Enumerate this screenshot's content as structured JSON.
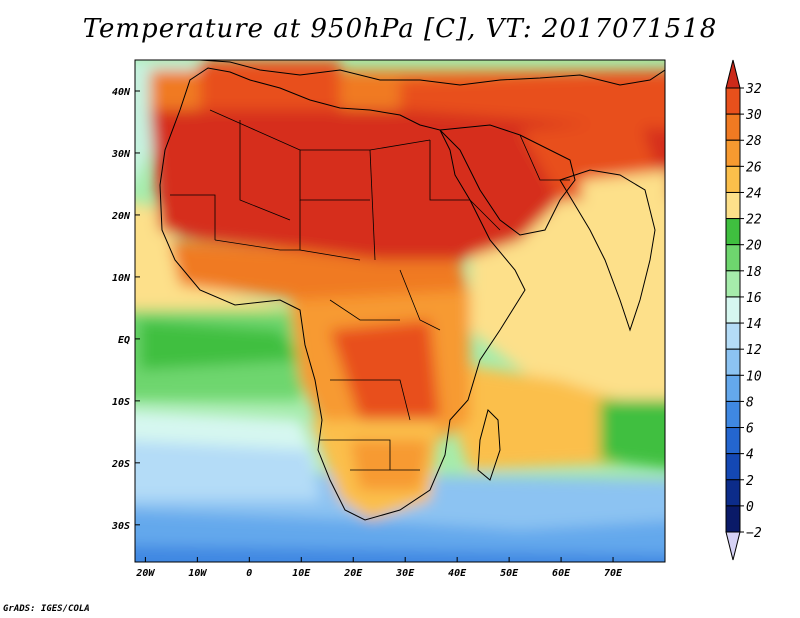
{
  "title": "Temperature at 950hPa [C], VT: 2017071518",
  "credit": "GrADS: IGES/COLA",
  "map": {
    "lon_range": [
      -22,
      80
    ],
    "lat_range": [
      -36,
      45
    ],
    "lon_ticks": [
      {
        "value": -20,
        "label": "20W"
      },
      {
        "value": -10,
        "label": "10W"
      },
      {
        "value": 0,
        "label": "0"
      },
      {
        "value": 10,
        "label": "10E"
      },
      {
        "value": 20,
        "label": "20E"
      },
      {
        "value": 30,
        "label": "30E"
      },
      {
        "value": 40,
        "label": "40E"
      },
      {
        "value": 50,
        "label": "50E"
      },
      {
        "value": 60,
        "label": "60E"
      },
      {
        "value": 70,
        "label": "70E"
      }
    ],
    "lat_ticks": [
      {
        "value": 40,
        "label": "40N"
      },
      {
        "value": 30,
        "label": "30N"
      },
      {
        "value": 20,
        "label": "20N"
      },
      {
        "value": 10,
        "label": "10N"
      },
      {
        "value": 0,
        "label": "EQ"
      },
      {
        "value": -10,
        "label": "10S"
      },
      {
        "value": -20,
        "label": "20S"
      },
      {
        "value": -30,
        "label": "30S"
      }
    ]
  },
  "colorbar": {
    "levels": [
      {
        "value": "32",
        "color": "#d62f1e"
      },
      {
        "value": "30",
        "color": "#e8501c"
      },
      {
        "value": "28",
        "color": "#f07a22"
      },
      {
        "value": "26",
        "color": "#f79a30"
      },
      {
        "value": "24",
        "color": "#fbbf4b"
      },
      {
        "value": "22",
        "color": "#fde08a"
      },
      {
        "value": "20",
        "color": "#3fbf3f"
      },
      {
        "value": "18",
        "color": "#6ed66e"
      },
      {
        "value": "16",
        "color": "#a6ecab"
      },
      {
        "value": "14",
        "color": "#d6f7f0"
      },
      {
        "value": "12",
        "color": "#b4dcf7"
      },
      {
        "value": "10",
        "color": "#8cc3f2"
      },
      {
        "value": "8",
        "color": "#64a8ec"
      },
      {
        "value": "6",
        "color": "#3f88e2"
      },
      {
        "value": "4",
        "color": "#2466cf"
      },
      {
        "value": "2",
        "color": "#1448b4"
      },
      {
        "value": "0",
        "color": "#0c2c8a"
      },
      {
        "value": "−2",
        "color": "#0a1a68"
      }
    ],
    "over_color": "#cc2a1a",
    "under_color": "#d6d2f5"
  }
}
